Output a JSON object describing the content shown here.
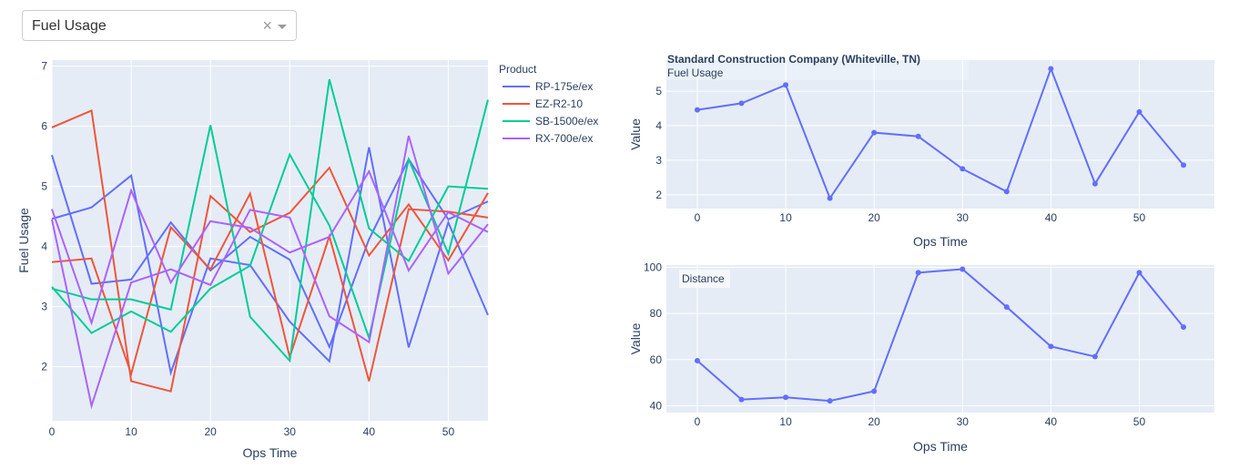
{
  "dropdown": {
    "value": "Fuel Usage",
    "clear_icon": "×"
  },
  "colors": {
    "plot_bg": "#e5ecf6",
    "grid": "#ffffff",
    "text": "#2a3f5f"
  },
  "chart_data": [
    {
      "type": "line",
      "xlabel": "Ops Time",
      "ylabel": "Fuel Usage",
      "xlim": [
        0,
        55
      ],
      "ylim": [
        1.1,
        7.1
      ],
      "x_ticks": [
        0,
        10,
        20,
        30,
        40,
        50
      ],
      "y_ticks": [
        2,
        3,
        4,
        5,
        6,
        7
      ],
      "legend_title": "Product",
      "legend_position": "right",
      "x": [
        0,
        5,
        10,
        15,
        20,
        25,
        30,
        35,
        40,
        45,
        50,
        55
      ],
      "series": [
        {
          "name": "RP-175e/ex",
          "color": "#636efa",
          "lines": [
            [
              4.46,
              4.65,
              5.18,
              1.9,
              3.8,
              3.69,
              2.75,
              2.09,
              5.65,
              2.32,
              4.4,
              2.86
            ],
            [
              5.52,
              3.38,
              3.45,
              4.4,
              3.6,
              4.16,
              3.78,
              2.33,
              4.12,
              5.45,
              4.45,
              4.75
            ]
          ]
        },
        {
          "name": "EZ-R2-10",
          "color": "#ef553b",
          "lines": [
            [
              5.98,
              6.26,
              1.76,
              1.59,
              4.84,
              4.24,
              4.56,
              5.31,
              3.85,
              4.7,
              3.77,
              4.89
            ],
            [
              3.74,
              3.8,
              1.88,
              4.32,
              3.62,
              4.88,
              2.16,
              4.17,
              1.76,
              4.62,
              4.58,
              4.48
            ]
          ]
        },
        {
          "name": "SB-1500e/ex",
          "color": "#00cc96",
          "lines": [
            [
              3.33,
              2.56,
              2.92,
              2.58,
              3.3,
              3.68,
              5.53,
              4.35,
              2.48,
              5.45,
              3.88,
              6.44
            ],
            [
              3.3,
              3.12,
              3.12,
              2.95,
              6.02,
              2.83,
              2.1,
              6.78,
              4.3,
              3.76,
              5.0,
              4.96
            ]
          ]
        },
        {
          "name": "RX-700e/ex",
          "color": "#ab63fa",
          "lines": [
            [
              4.62,
              2.73,
              4.93,
              3.4,
              4.42,
              4.31,
              3.9,
              4.16,
              5.25,
              3.6,
              4.57,
              4.24
            ],
            [
              4.45,
              1.35,
              3.4,
              3.62,
              3.36,
              4.61,
              4.48,
              2.84,
              2.41,
              5.84,
              3.55,
              4.37
            ]
          ]
        }
      ]
    },
    {
      "type": "line",
      "title": "Standard Construction Company (Whiteville, TN)",
      "annotation": "Fuel Usage",
      "xlabel": "Ops Time",
      "ylabel": "Value",
      "xlim": [
        -3.5,
        58.5
      ],
      "ylim": [
        1.6,
        5.9
      ],
      "x_ticks": [
        0,
        10,
        20,
        30,
        40,
        50
      ],
      "y_ticks": [
        2,
        3,
        4,
        5
      ],
      "color": "#636efa",
      "x": [
        0,
        5,
        10,
        15,
        20,
        25,
        30,
        35,
        40,
        45,
        50,
        55
      ],
      "values": [
        4.46,
        4.65,
        5.18,
        1.9,
        3.8,
        3.69,
        2.75,
        2.09,
        5.65,
        2.32,
        4.4,
        2.86
      ]
    },
    {
      "type": "line",
      "annotation": "Distance",
      "xlabel": "Ops Time",
      "ylabel": "Value",
      "xlim": [
        -3.5,
        58.5
      ],
      "ylim": [
        37,
        101
      ],
      "x_ticks": [
        0,
        10,
        20,
        30,
        40,
        50
      ],
      "y_ticks": [
        40,
        60,
        80,
        100
      ],
      "color": "#636efa",
      "x": [
        0,
        5,
        10,
        15,
        20,
        25,
        30,
        35,
        40,
        45,
        50,
        55
      ],
      "values": [
        59.5,
        42.7,
        43.6,
        42.1,
        46.3,
        97.7,
        99.2,
        82.8,
        65.7,
        61.3,
        97.7,
        74.1
      ]
    }
  ]
}
